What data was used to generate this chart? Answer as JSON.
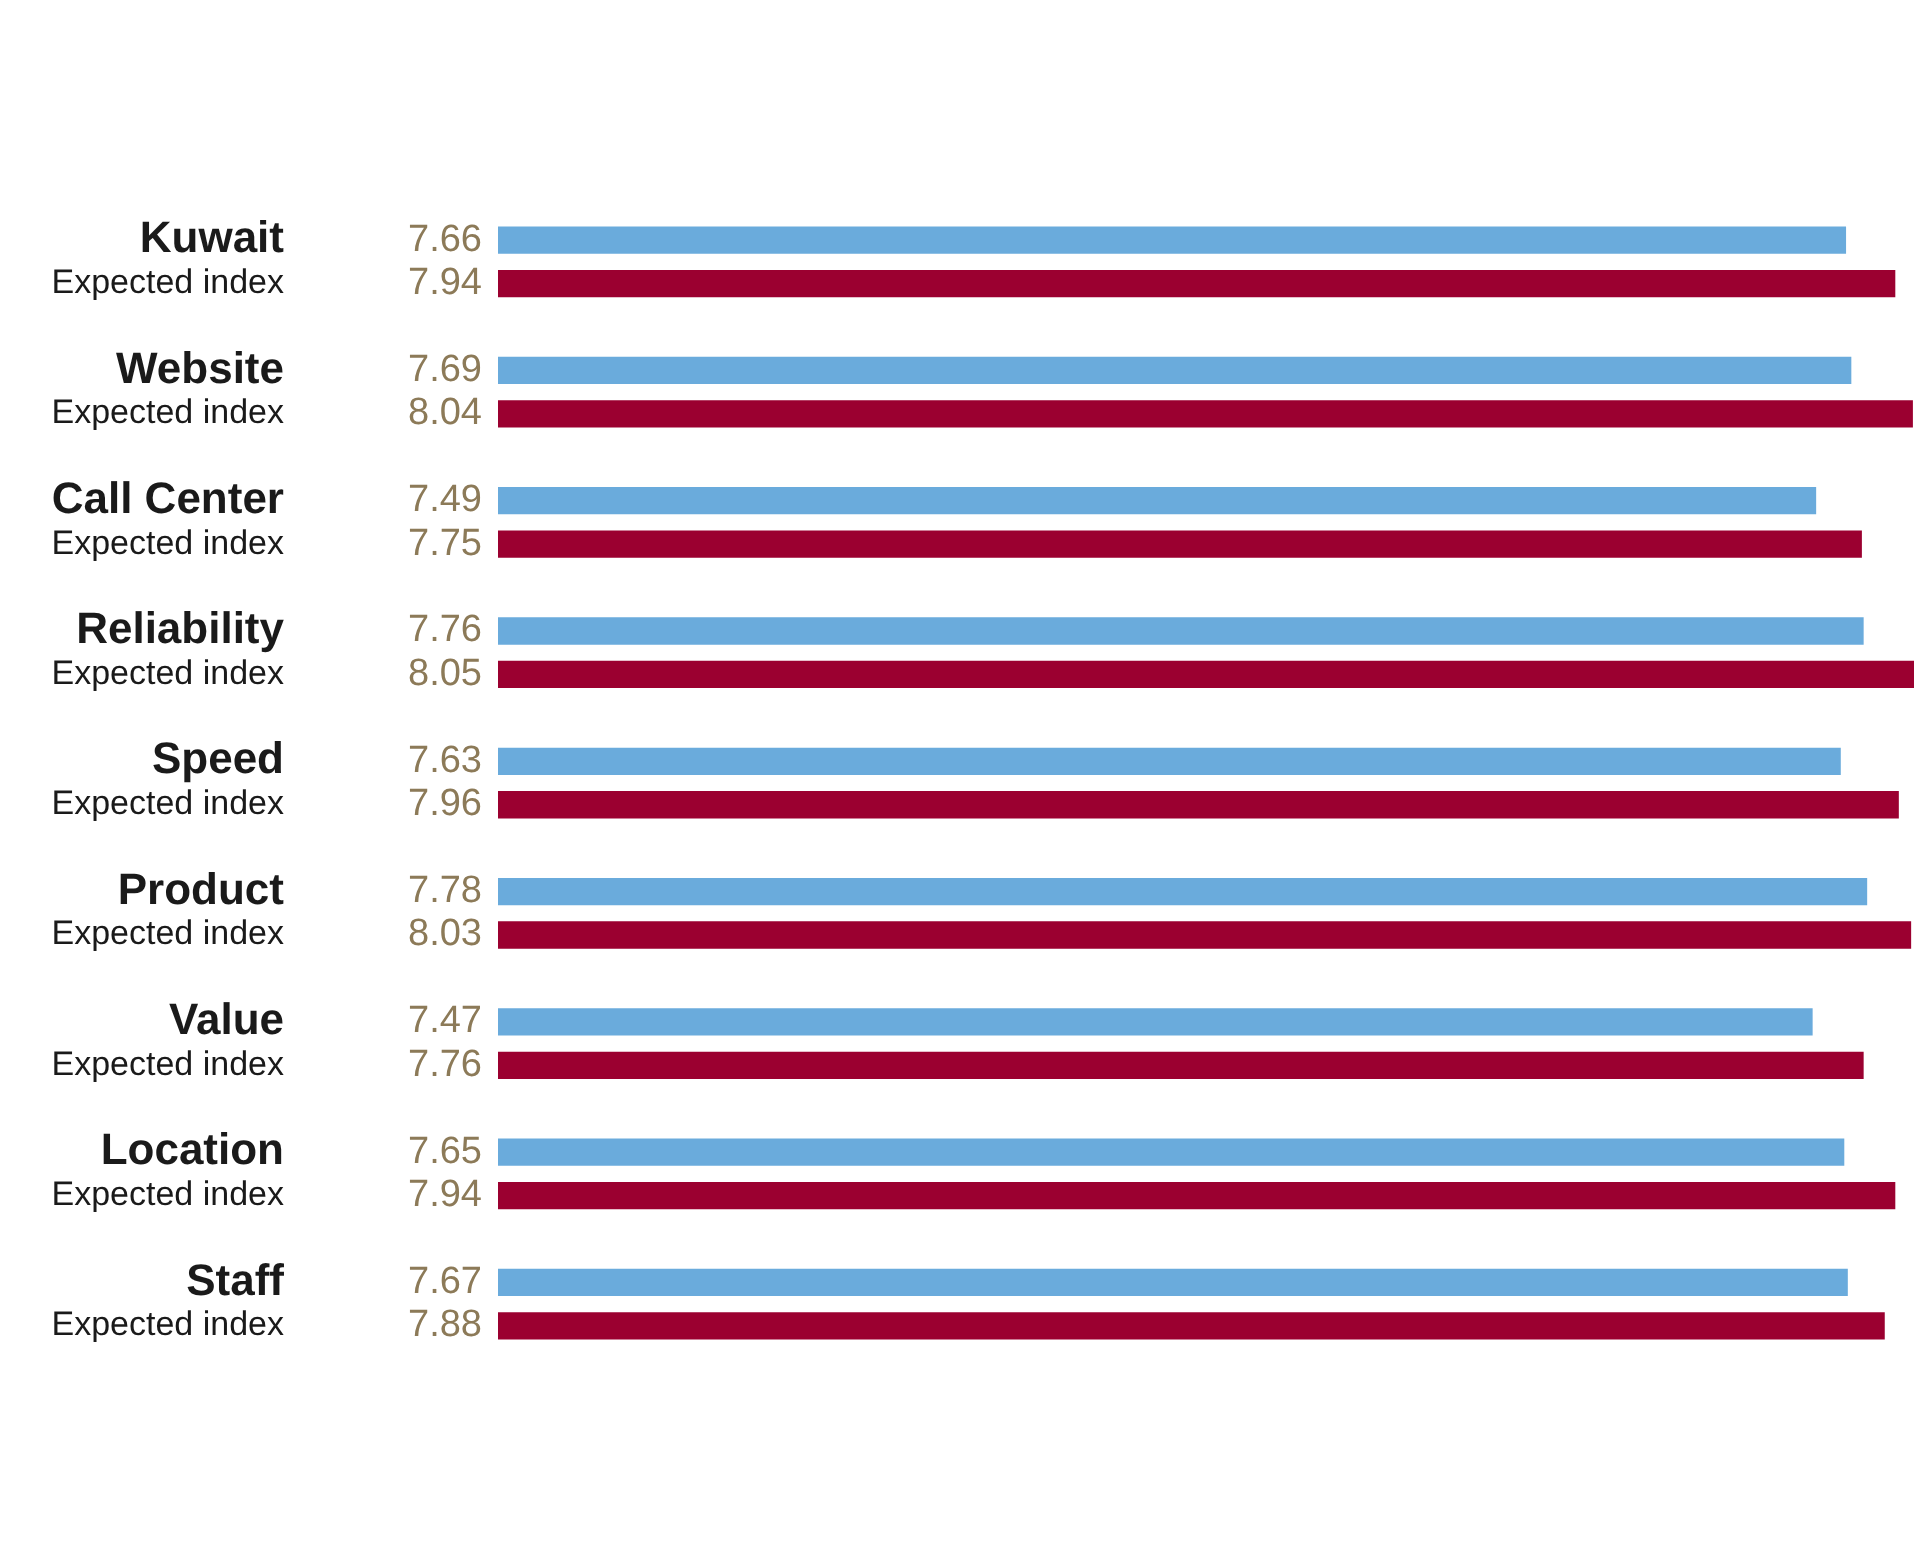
{
  "chart_data": {
    "type": "bar",
    "orientation": "horizontal",
    "data_labels": true,
    "categories": [
      "Kuwait",
      "Expected index",
      null,
      "Website",
      "Expected index",
      null,
      "Call Center",
      "Expected index",
      null,
      "Reliability",
      "Expected index",
      null,
      "Speed",
      "Expected index",
      null,
      "Product",
      "Expected index",
      null,
      "Value",
      "Expected index",
      null,
      "Location",
      "Expected index",
      null,
      "Staff",
      "Expected index"
    ],
    "values": [
      7.66,
      7.94,
      null,
      7.69,
      8.04,
      null,
      7.49,
      7.75,
      null,
      7.76,
      8.05,
      null,
      7.63,
      7.96,
      null,
      7.78,
      8.03,
      null,
      7.47,
      7.76,
      null,
      7.65,
      7.94,
      null,
      7.67,
      7.88
    ],
    "colors": [
      "#6aabdc",
      "#9b0030",
      null,
      "#6aabdc",
      "#9b0030",
      null,
      "#6aabdc",
      "#9b0030",
      null,
      "#6aabdc",
      "#9b0030",
      null,
      "#6aabdc",
      "#9b0030",
      null,
      "#6aabdc",
      "#9b0030",
      null,
      "#6aabdc",
      "#9b0030",
      null,
      "#6aabdc",
      "#9b0030",
      null,
      "#6aabdc",
      "#9b0030"
    ]
  }
}
